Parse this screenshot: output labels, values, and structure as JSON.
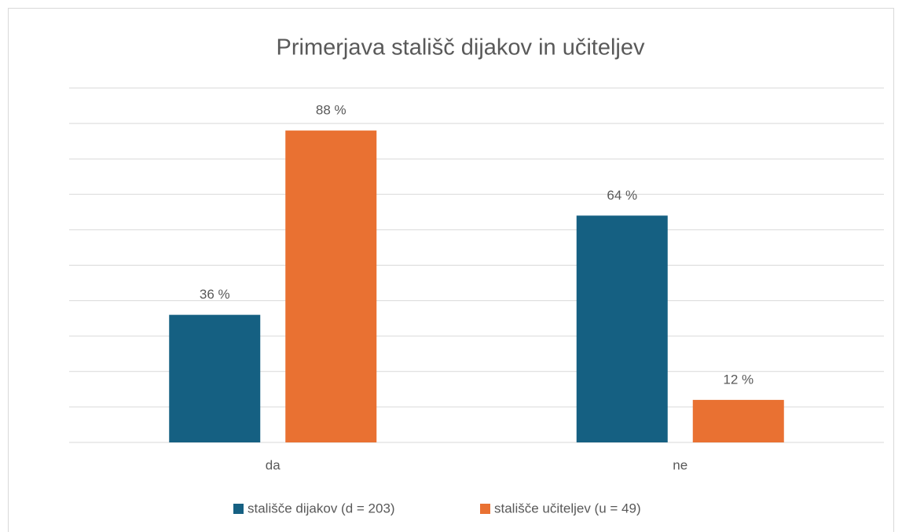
{
  "chart_data": {
    "type": "bar",
    "title": "Primerjava stališč dijakov in učiteljev",
    "categories": [
      "da",
      "ne"
    ],
    "series": [
      {
        "name": "stališče dijakov (d = 203)",
        "color": "#156082",
        "values": [
          36,
          64
        ],
        "value_labels": [
          "36 %",
          "64 %"
        ]
      },
      {
        "name": "stališče učiteljev (u = 49)",
        "color": "#e97132",
        "values": [
          88,
          12
        ],
        "value_labels": [
          "88 %",
          "12 %"
        ]
      }
    ],
    "ylim": [
      0,
      100
    ],
    "yticks": [
      0,
      10,
      20,
      30,
      40,
      50,
      60,
      70,
      80,
      90,
      100
    ],
    "grid": true,
    "legend": "bottom"
  }
}
